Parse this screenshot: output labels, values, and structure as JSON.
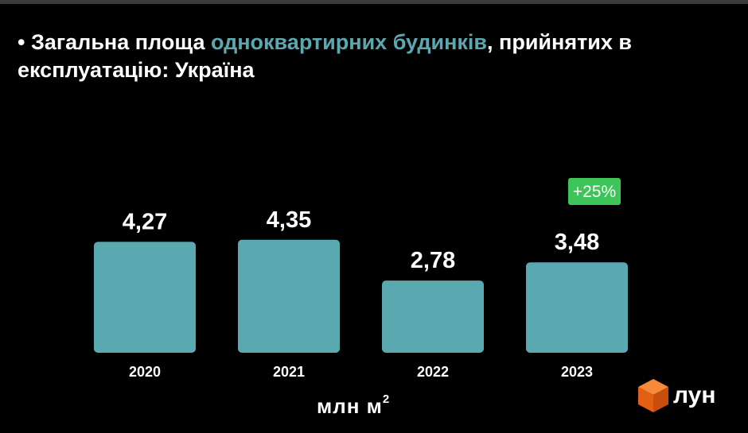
{
  "title": {
    "bullet": "• ",
    "part1": "Загальна площа ",
    "highlight": "одноквартирних будинків",
    "part2": ", прийнятих в експлуатацію: Україна"
  },
  "unit": {
    "text": "млн  м",
    "sup": "2"
  },
  "logo": {
    "text": "лун"
  },
  "colors": {
    "bar": "#5aa8b0",
    "highlight_text": "#5aa8b0",
    "badge_bg": "#3ec55a",
    "logo_accent": "#f26a1b"
  },
  "chart_data": {
    "type": "bar",
    "categories": [
      "2020",
      "2021",
      "2022",
      "2023"
    ],
    "values": [
      4.27,
      4.35,
      2.78,
      3.48
    ],
    "value_labels": [
      "4,27",
      "4,35",
      "2,78",
      "3,48"
    ],
    "ylim": [
      0,
      5
    ],
    "grid": false,
    "annotations": [
      {
        "category": "2023",
        "text": "+25%"
      }
    ]
  }
}
